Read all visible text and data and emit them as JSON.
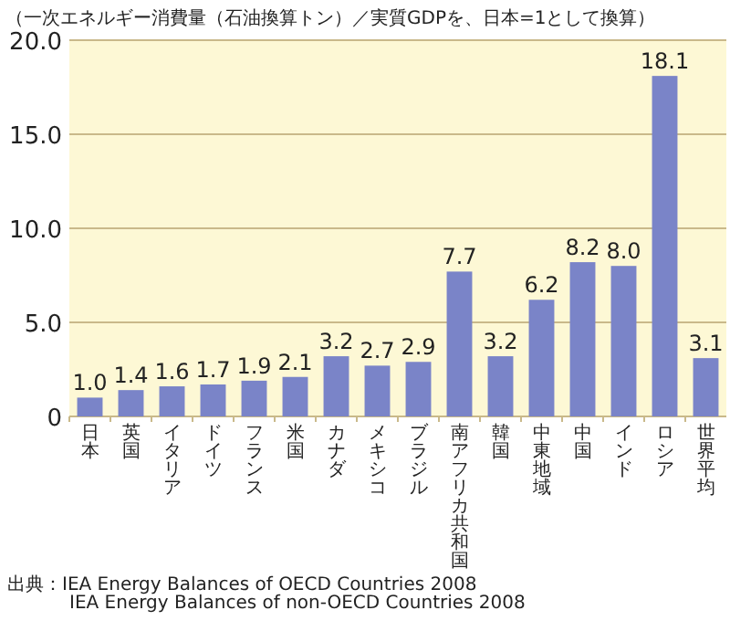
{
  "chart_data": {
    "type": "bar",
    "ylabel": "（一次エネルギー消費量（石油換算トン）／実質GDPを、日本=1として換算）",
    "categories": [
      "日本",
      "英国",
      "イタリア",
      "ドイツ",
      "フランス",
      "米国",
      "カナダ",
      "メキシコ",
      "ブラジル",
      "南アフリカ共和国",
      "韓国",
      "中東地域",
      "中国",
      "インド",
      "ロシア",
      "世界平均"
    ],
    "values": [
      1.0,
      1.4,
      1.6,
      1.7,
      1.9,
      2.1,
      3.2,
      2.7,
      2.9,
      7.7,
      3.2,
      6.2,
      8.2,
      8.0,
      18.1,
      3.1
    ],
    "color": "#7a84c8",
    "ylim": [
      0,
      20
    ],
    "yticks": [
      0,
      {
        "value": 5,
        "label": "5.0"
      },
      {
        "value": 10,
        "label": "10.0"
      },
      {
        "value": 15,
        "label": "15.0"
      },
      {
        "value": 20,
        "label": "20.0"
      }
    ],
    "value_labels": [
      "1.0",
      "1.4",
      "1.6",
      "1.7",
      "1.9",
      "2.1",
      "3.2",
      "2.7",
      "2.9",
      "7.7",
      "3.2",
      "6.2",
      "8.2",
      "8.0",
      "18.1",
      "3.1"
    ],
    "grid": "y",
    "data_labels": true,
    "annotations": [
      "出典：IEA Energy Balances of OECD Countries 2008",
      "IEA Energy Balances of non-OECD Countries 2008"
    ]
  }
}
